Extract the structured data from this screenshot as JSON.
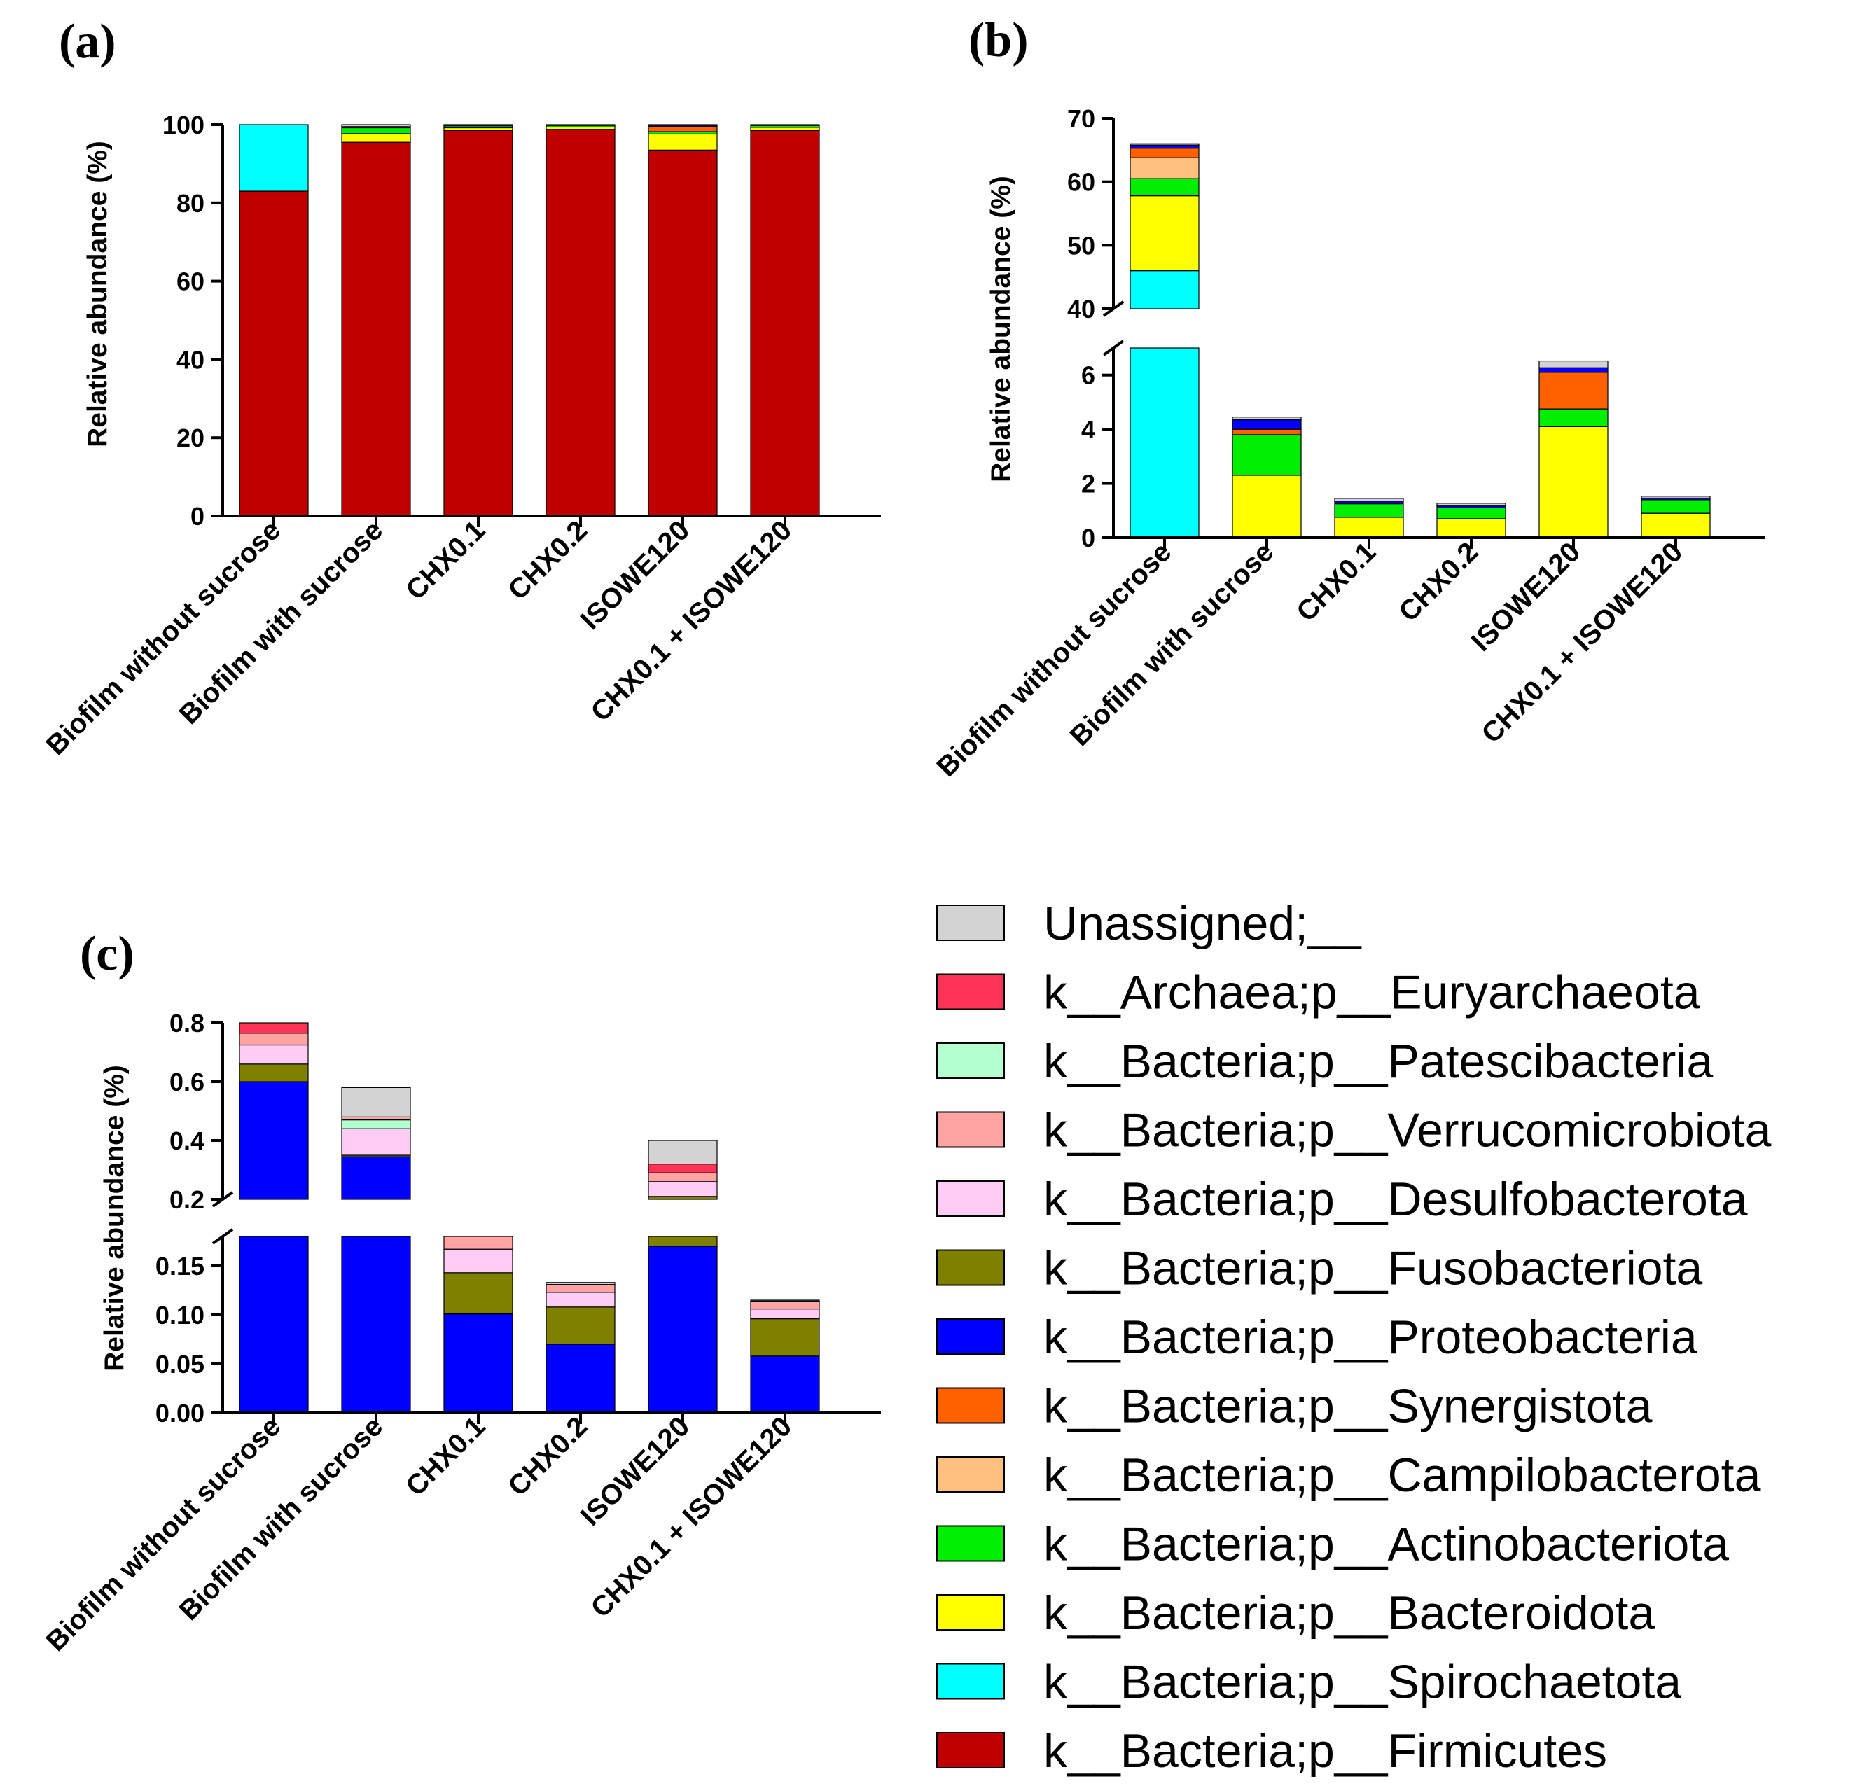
{
  "panels": {
    "a": {
      "label": "(a)"
    },
    "b": {
      "label": "(b)"
    },
    "c": {
      "label": "(c)"
    }
  },
  "legend": [
    {
      "label": "Unassigned;__",
      "color": "#d3d3d3"
    },
    {
      "label": "k__Archaea;p__Euryarchaeota",
      "color": "#ff3355"
    },
    {
      "label": "k__Bacteria;p__Patescibacteria",
      "color": "#b3ffd0"
    },
    {
      "label": "k__Bacteria;p__Verrucomicrobiota",
      "color": "#ffa3a3"
    },
    {
      "label": "k__Bacteria;p__Desulfobacterota",
      "color": "#ffccf5"
    },
    {
      "label": "k__Bacteria;p__Fusobacteriota",
      "color": "#808000"
    },
    {
      "label": "k__Bacteria;p__Proteobacteria",
      "color": "#0000ff"
    },
    {
      "label": "k__Bacteria;p__Synergistota",
      "color": "#ff6000"
    },
    {
      "label": "k__Bacteria;p__Campilobacterota",
      "color": "#ffc080"
    },
    {
      "label": "k__Bacteria;p__Actinobacteriota",
      "color": "#00ee00"
    },
    {
      "label": "k__Bacteria;p__Bacteroidota",
      "color": "#ffff00"
    },
    {
      "label": "k__Bacteria;p__Spirochaetota",
      "color": "#00ffff"
    },
    {
      "label": "k__Bacteria;p__Firmicutes",
      "color": "#c00000"
    }
  ],
  "chart_data": [
    {
      "panel": "(a)",
      "type": "bar",
      "stacked": true,
      "categories": [
        "Biofilm without sucrose",
        "Biofilm with sucrose",
        "CHX0.1",
        "CHX0.2",
        "ISOWE120",
        "CHX0.1 + ISOWE120"
      ],
      "ylabel": "Relative abundance (%)",
      "ylim": [
        0,
        100
      ],
      "yticks": [
        "0",
        "20",
        "40",
        "60",
        "80",
        "100"
      ],
      "yticks_values": [
        0,
        20,
        40,
        60,
        80,
        100
      ],
      "series": [
        {
          "name": "k__Bacteria;p__Firmicutes",
          "values": [
            83,
            95.5,
            98.5,
            98.8,
            93.5,
            98.5
          ]
        },
        {
          "name": "k__Bacteria;p__Spirochaetota",
          "values": [
            17,
            0,
            0,
            0,
            0,
            0
          ]
        },
        {
          "name": "k__Bacteria;p__Bacteroidota",
          "values": [
            0,
            2.2,
            0.7,
            0.6,
            4.1,
            0.8
          ]
        },
        {
          "name": "k__Bacteria;p__Actinobacteriota",
          "values": [
            0,
            1.5,
            0.5,
            0.4,
            0.6,
            0.5
          ]
        },
        {
          "name": "k__Bacteria;p__Synergistota",
          "values": [
            0,
            0,
            0,
            0,
            1.4,
            0
          ]
        },
        {
          "name": "k__Bacteria;p__Proteobacteria",
          "values": [
            0,
            0.3,
            0,
            0,
            0.3,
            0
          ]
        },
        {
          "name": "Unassigned;__",
          "values": [
            0,
            0.5,
            0.3,
            0.2,
            0.1,
            0.2
          ]
        }
      ]
    },
    {
      "panel": "(b)",
      "type": "bar",
      "stacked": true,
      "categories": [
        "Biofilm without sucrose",
        "Biofilm with sucrose",
        "CHX0.1",
        "CHX0.2",
        "ISOWE120",
        "CHX0.1 + ISOWE120"
      ],
      "ylabel": "Relative abundance (%)",
      "broken_axis": {
        "lower": [
          0,
          7
        ],
        "upper": [
          40,
          70
        ]
      },
      "yticks": [
        "0",
        "2",
        "4",
        "6",
        "40",
        "50",
        "60",
        "70"
      ],
      "yticks_values": [
        0,
        2,
        4,
        6,
        40,
        50,
        60,
        70
      ],
      "series": [
        {
          "name": "k__Bacteria;p__Spirochaetota",
          "values": [
            46,
            0,
            0,
            0,
            0,
            0
          ]
        },
        {
          "name": "k__Bacteria;p__Bacteroidota",
          "values": [
            11.8,
            2.3,
            0.75,
            0.7,
            4.1,
            0.9
          ]
        },
        {
          "name": "k__Bacteria;p__Actinobacteriota",
          "values": [
            2.7,
            1.5,
            0.5,
            0.4,
            0.65,
            0.5
          ]
        },
        {
          "name": "k__Bacteria;p__Campilobacterota",
          "values": [
            3.3,
            0,
            0,
            0,
            0,
            0
          ]
        },
        {
          "name": "k__Bacteria;p__Synergistota",
          "values": [
            1.5,
            0.2,
            0,
            0,
            1.35,
            0
          ]
        },
        {
          "name": "k__Bacteria;p__Proteobacteria",
          "values": [
            0.5,
            0.35,
            0.1,
            0.07,
            0.17,
            0.06
          ]
        },
        {
          "name": "Unassigned;__",
          "values": [
            0.2,
            0.1,
            0.1,
            0.1,
            0.25,
            0.07
          ]
        }
      ]
    },
    {
      "panel": "(c)",
      "type": "bar",
      "stacked": true,
      "categories": [
        "Biofilm without sucrose",
        "Biofilm with sucrose",
        "CHX0.1",
        "CHX0.2",
        "ISOWE120",
        "CHX0.1 + ISOWE120"
      ],
      "ylabel": "Relative abundance (%)",
      "broken_axis": {
        "lower": [
          0,
          0.18
        ],
        "upper": [
          0.2,
          0.8
        ]
      },
      "yticks": [
        "0.00",
        "0.05",
        "0.10",
        "0.15",
        "0.2",
        "0.4",
        "0.6",
        "0.8"
      ],
      "yticks_values": [
        0,
        0.05,
        0.1,
        0.15,
        0.2,
        0.4,
        0.6,
        0.8
      ],
      "series": [
        {
          "name": "k__Bacteria;p__Proteobacteria",
          "values": [
            0.6,
            0.345,
            0.101,
            0.07,
            0.17,
            0.058
          ]
        },
        {
          "name": "k__Bacteria;p__Fusobacteriota",
          "values": [
            0.06,
            0.005,
            0.042,
            0.038,
            0.04,
            0.038
          ]
        },
        {
          "name": "k__Bacteria;p__Desulfobacterota",
          "values": [
            0.065,
            0.09,
            0.024,
            0.015,
            0.05,
            0.01
          ]
        },
        {
          "name": "k__Bacteria;p__Patescibacteria",
          "values": [
            0,
            0.03,
            0,
            0,
            0,
            0
          ]
        },
        {
          "name": "k__Bacteria;p__Verrucomicrobiota",
          "values": [
            0.04,
            0.01,
            0.015,
            0.008,
            0.03,
            0.008
          ]
        },
        {
          "name": "k__Archaea;p__Euryarchaeota",
          "values": [
            0.035,
            0,
            0,
            0,
            0.03,
            0
          ]
        },
        {
          "name": "Unassigned;__",
          "values": [
            0,
            0.1,
            0,
            0.002,
            0.08,
            0.001
          ]
        }
      ]
    }
  ]
}
